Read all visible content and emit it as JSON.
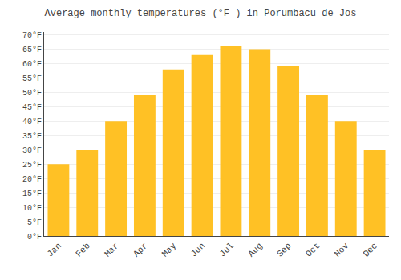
{
  "chart_data": {
    "type": "bar",
    "title": "Average monthly temperatures (°F ) in Porumbacu de Jos",
    "categories": [
      "Jan",
      "Feb",
      "Mar",
      "Apr",
      "May",
      "Jun",
      "Jul",
      "Aug",
      "Sep",
      "Oct",
      "Nov",
      "Dec"
    ],
    "values": [
      25,
      30,
      40,
      49,
      58,
      63,
      66,
      65,
      59,
      49,
      40,
      30
    ],
    "color": "#FFC125",
    "ylim": [
      0,
      71
    ],
    "yticks": [
      {
        "value": 0,
        "label": "0°F"
      },
      {
        "value": 5,
        "label": "5°F"
      },
      {
        "value": 10,
        "label": "10°F"
      },
      {
        "value": 15,
        "label": "15°F"
      },
      {
        "value": 20,
        "label": "20°F"
      },
      {
        "value": 25,
        "label": "25°F"
      },
      {
        "value": 30,
        "label": "30°F"
      },
      {
        "value": 35,
        "label": "35°F"
      },
      {
        "value": 40,
        "label": "40°F"
      },
      {
        "value": 45,
        "label": "45°F"
      },
      {
        "value": 50,
        "label": "50°F"
      },
      {
        "value": 55,
        "label": "55°F"
      },
      {
        "value": 60,
        "label": "60°F"
      },
      {
        "value": 65,
        "label": "65°F"
      },
      {
        "value": 70,
        "label": "70°F"
      }
    ],
    "grid": true
  }
}
